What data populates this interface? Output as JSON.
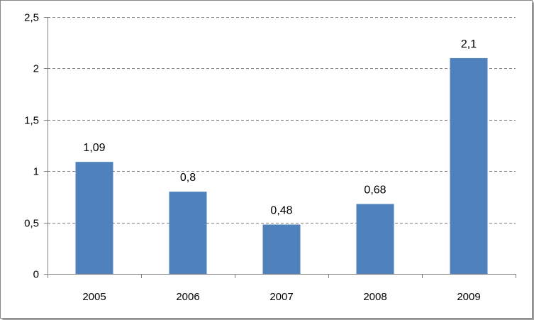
{
  "chart_data": {
    "type": "bar",
    "categories": [
      "2005",
      "2006",
      "2007",
      "2008",
      "2009"
    ],
    "values": [
      1.09,
      0.8,
      0.48,
      0.68,
      2.1
    ],
    "data_labels": [
      "1,09",
      "0,8",
      "0,48",
      "0,68",
      "2,1"
    ],
    "y_ticks": [
      0,
      0.5,
      1,
      1.5,
      2,
      2.5
    ],
    "y_tick_labels": [
      "0",
      "0,5",
      "1",
      "1,5",
      "2",
      "2,5"
    ],
    "ylim": [
      0,
      2.5
    ],
    "grid": true,
    "legend": "none",
    "title": "",
    "xlabel": "",
    "ylabel": "",
    "bar_color": "#4f81bd",
    "grid_color": "#808080"
  }
}
